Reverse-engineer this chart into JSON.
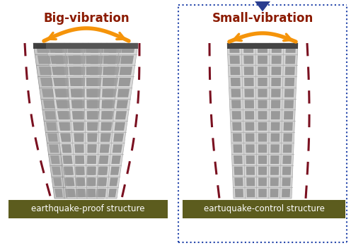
{
  "bg_color": "#ffffff",
  "title_left": "Big-vibration",
  "title_right": "Small-vibration",
  "label_left": "earthquake-proof structure",
  "label_right": "eartuquake-control structure",
  "title_color": "#8b1a00",
  "label_bg_color": "#5c5c1e",
  "label_text_color": "#ffffff",
  "arrow_color": "#f5940a",
  "dashed_color": "#7a1020",
  "box_color": "#2244aa",
  "triangle_color": "#2a3d8f",
  "figsize": [
    4.96,
    3.51
  ],
  "dpi": 100,
  "building_face": "#d4d4d4",
  "building_edge": "#999999",
  "building_dark": "#888888",
  "building_top": "#444444",
  "window_color": "#555555",
  "window_light": "#cccccc"
}
